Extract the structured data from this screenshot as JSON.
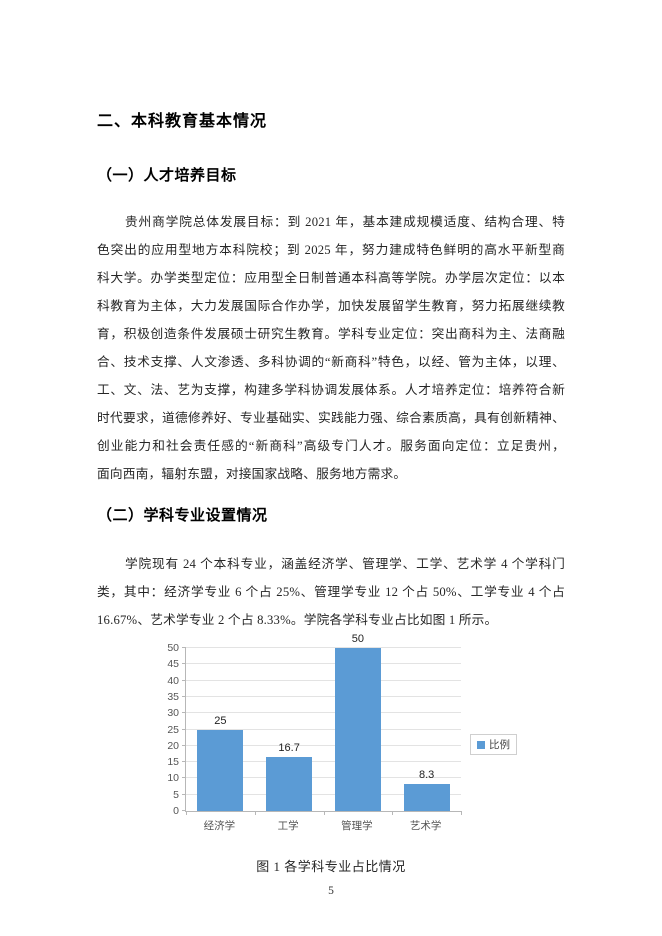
{
  "doc": {
    "heading1": "二、本科教育基本情况",
    "section1": {
      "heading": "（一）人才培养目标",
      "lines": [
        "贵州商学院总体发展目标：到 2021 年，基本建成规模适度、结构合理、特",
        "色突出的应用型地方本科院校；到 2025 年，努力建成特色鲜明的高水平新型商",
        "科大学。办学类型定位：应用型全日制普通本科高等学院。办学层次定位：以本",
        "科教育为主体，大力发展国际合作办学，加快发展留学生教育，努力拓展继续教",
        "育，积极创造条件发展硕士研究生教育。学科专业定位：突出商科为主、法商融",
        "合、技术支撑、人文渗透、多科协调的“新商科”特色，以经、管为主体，以理、",
        "工、文、法、艺为支撑，构建多学科协调发展体系。人才培养定位：培养符合新",
        "时代要求，道德修养好、专业基础实、实践能力强、综合素质高，具有创新精神、",
        "创业能力和社会责任感的“新商科”高级专门人才。服务面向定位：立足贵州，",
        "面向西南，辐射东盟，对接国家战略、服务地方需求。"
      ]
    },
    "section2": {
      "heading": "（二）学科专业设置情况",
      "lines": [
        "学院现有 24 个本科专业，涵盖经济学、管理学、工学、艺术学 4 个学科门",
        "类，其中：经济学专业 6 个占 25%、管理学专业 12 个占 50%、工学专业 4 个占",
        "16.67%、艺术学专业 2 个占 8.33%。学院各学科专业占比如图 1 所示。"
      ]
    },
    "caption": "图 1  各学科专业占比情况",
    "page_number": "5"
  },
  "chart_data": {
    "type": "bar",
    "title": "",
    "xlabel": "",
    "ylabel": "",
    "categories": [
      "经济学",
      "工学",
      "管理学",
      "艺术学"
    ],
    "series": [
      {
        "name": "比例",
        "values": [
          25,
          16.7,
          50,
          8.3
        ]
      }
    ],
    "data_labels": [
      25,
      16.7,
      50,
      8.3
    ],
    "ylim": [
      0,
      50
    ],
    "yticks": [
      0,
      5,
      10,
      15,
      20,
      25,
      30,
      35,
      40,
      45,
      50
    ],
    "grid": true,
    "legend_position": "right-center",
    "bar_color": "#5B9BD5"
  }
}
